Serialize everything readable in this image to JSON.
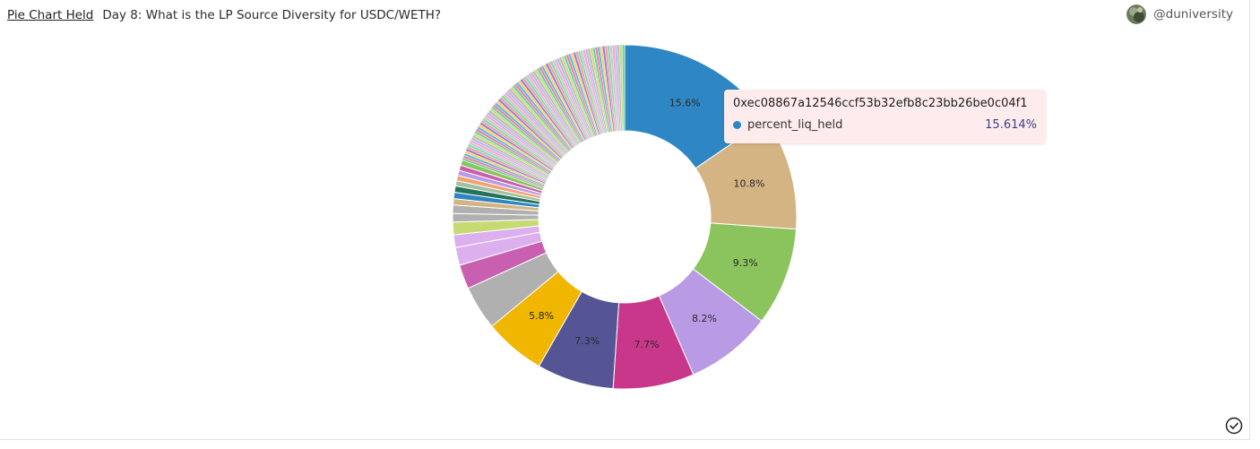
{
  "header": {
    "viz_link": "Pie Chart Held",
    "query_title": "Day 8: What is the LP Source Diversity for USDC/WETH?"
  },
  "user": {
    "handle": "@duniversity"
  },
  "tooltip": {
    "title": "0xec08867a12546ccf53b32efb8c23bb26be0c04f1",
    "series": "percent_liq_held",
    "value": "15.614%",
    "color": "#2e87c4"
  },
  "chart_data": {
    "type": "pie",
    "donut": true,
    "series_name": "percent_liq_held",
    "slices": [
      {
        "label": "0xec08867a12546ccf53b32efb8c23bb26be0c04f1",
        "value": 15.614,
        "display": "15.6%",
        "color": "#2e87c4"
      },
      {
        "value": 10.8,
        "display": "10.8%",
        "color": "#d4b483"
      },
      {
        "value": 9.3,
        "display": "9.3%",
        "color": "#8bc45c"
      },
      {
        "value": 8.2,
        "display": "8.2%",
        "color": "#b89be4"
      },
      {
        "value": 7.7,
        "display": "7.7%",
        "color": "#c8378a"
      },
      {
        "value": 7.3,
        "display": "7.3%",
        "color": "#555596"
      },
      {
        "value": 5.8,
        "display": "5.8%",
        "color": "#f1b600"
      },
      {
        "value": 4.2,
        "color": "#b0b0b0"
      },
      {
        "value": 2.3,
        "color": "#c95fb0"
      },
      {
        "value": 1.7,
        "color": "#dcb0ee"
      },
      {
        "value": 1.2,
        "color": "#dcb0ee"
      },
      {
        "value": 1.2,
        "color": "#c7da72"
      },
      {
        "value": 0.8,
        "color": "#b0b0b0"
      },
      {
        "value": 0.8,
        "color": "#b0b0b0"
      },
      {
        "value": 0.6,
        "color": "#d4b483"
      },
      {
        "value": 0.6,
        "color": "#2e87c4"
      },
      {
        "value": 0.6,
        "color": "#26735c"
      },
      {
        "value": 0.5,
        "color": "#a0c0a0"
      },
      {
        "value": 0.5,
        "color": "#f4a070"
      },
      {
        "value": 0.5,
        "color": "#b89be4"
      },
      {
        "value": 0.5,
        "color": "#c95fb0"
      },
      {
        "value": 0.5,
        "color": "#8bc45c"
      }
    ],
    "tail": {
      "count": 85,
      "total": 19.85,
      "colors": [
        "#7ecba1",
        "#f27fa5",
        "#5dbde0",
        "#ffd166",
        "#9b7fd4",
        "#e8a5a5",
        "#88d8b0",
        "#c9c9c9",
        "#f6a6d1",
        "#a3c4f3",
        "#d8b4a0",
        "#b5e48c"
      ]
    }
  }
}
